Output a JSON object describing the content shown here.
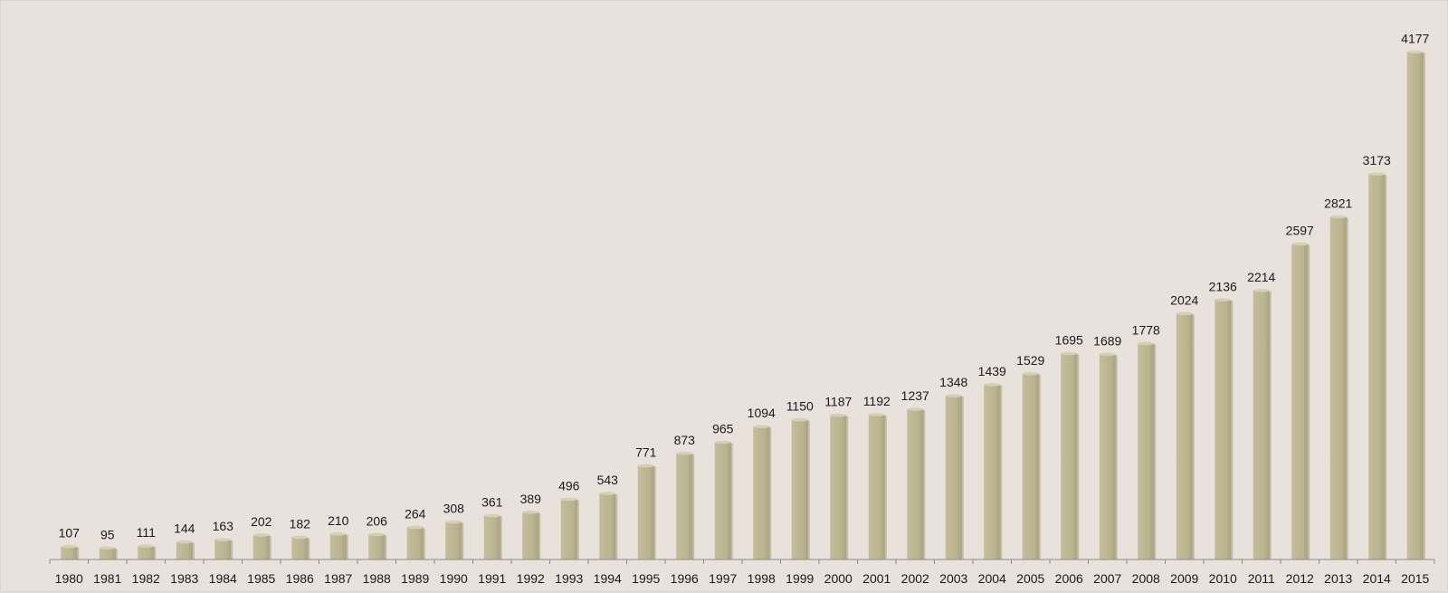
{
  "chart_data": {
    "type": "bar",
    "title": "",
    "xlabel": "",
    "ylabel": "",
    "categories": [
      "1980",
      "1981",
      "1982",
      "1983",
      "1984",
      "1985",
      "1986",
      "1987",
      "1988",
      "1989",
      "1990",
      "1991",
      "1992",
      "1993",
      "1994",
      "1995",
      "1996",
      "1997",
      "1998",
      "1999",
      "2000",
      "2001",
      "2002",
      "2003",
      "2004",
      "2005",
      "2006",
      "2007",
      "2008",
      "2009",
      "2010",
      "2011",
      "2012",
      "2013",
      "2014",
      "2015"
    ],
    "values": [
      107,
      95,
      111,
      144,
      163,
      202,
      182,
      210,
      206,
      264,
      308,
      361,
      389,
      496,
      543,
      771,
      873,
      965,
      1094,
      1150,
      1187,
      1192,
      1237,
      1348,
      1439,
      1529,
      1695,
      1689,
      1778,
      2024,
      2136,
      2214,
      2597,
      2821,
      3173,
      4177
    ],
    "ylim": [
      0,
      4300
    ],
    "grid": false,
    "legend": "none",
    "data_labels": true,
    "colors": {
      "background": "#e8e1dc",
      "bar": "#bab38f",
      "bar_top": "#d6d0b2",
      "bar_shadow": "#a8a27e",
      "axis": "#8c8c8c",
      "text": "#1a1a1a"
    }
  }
}
